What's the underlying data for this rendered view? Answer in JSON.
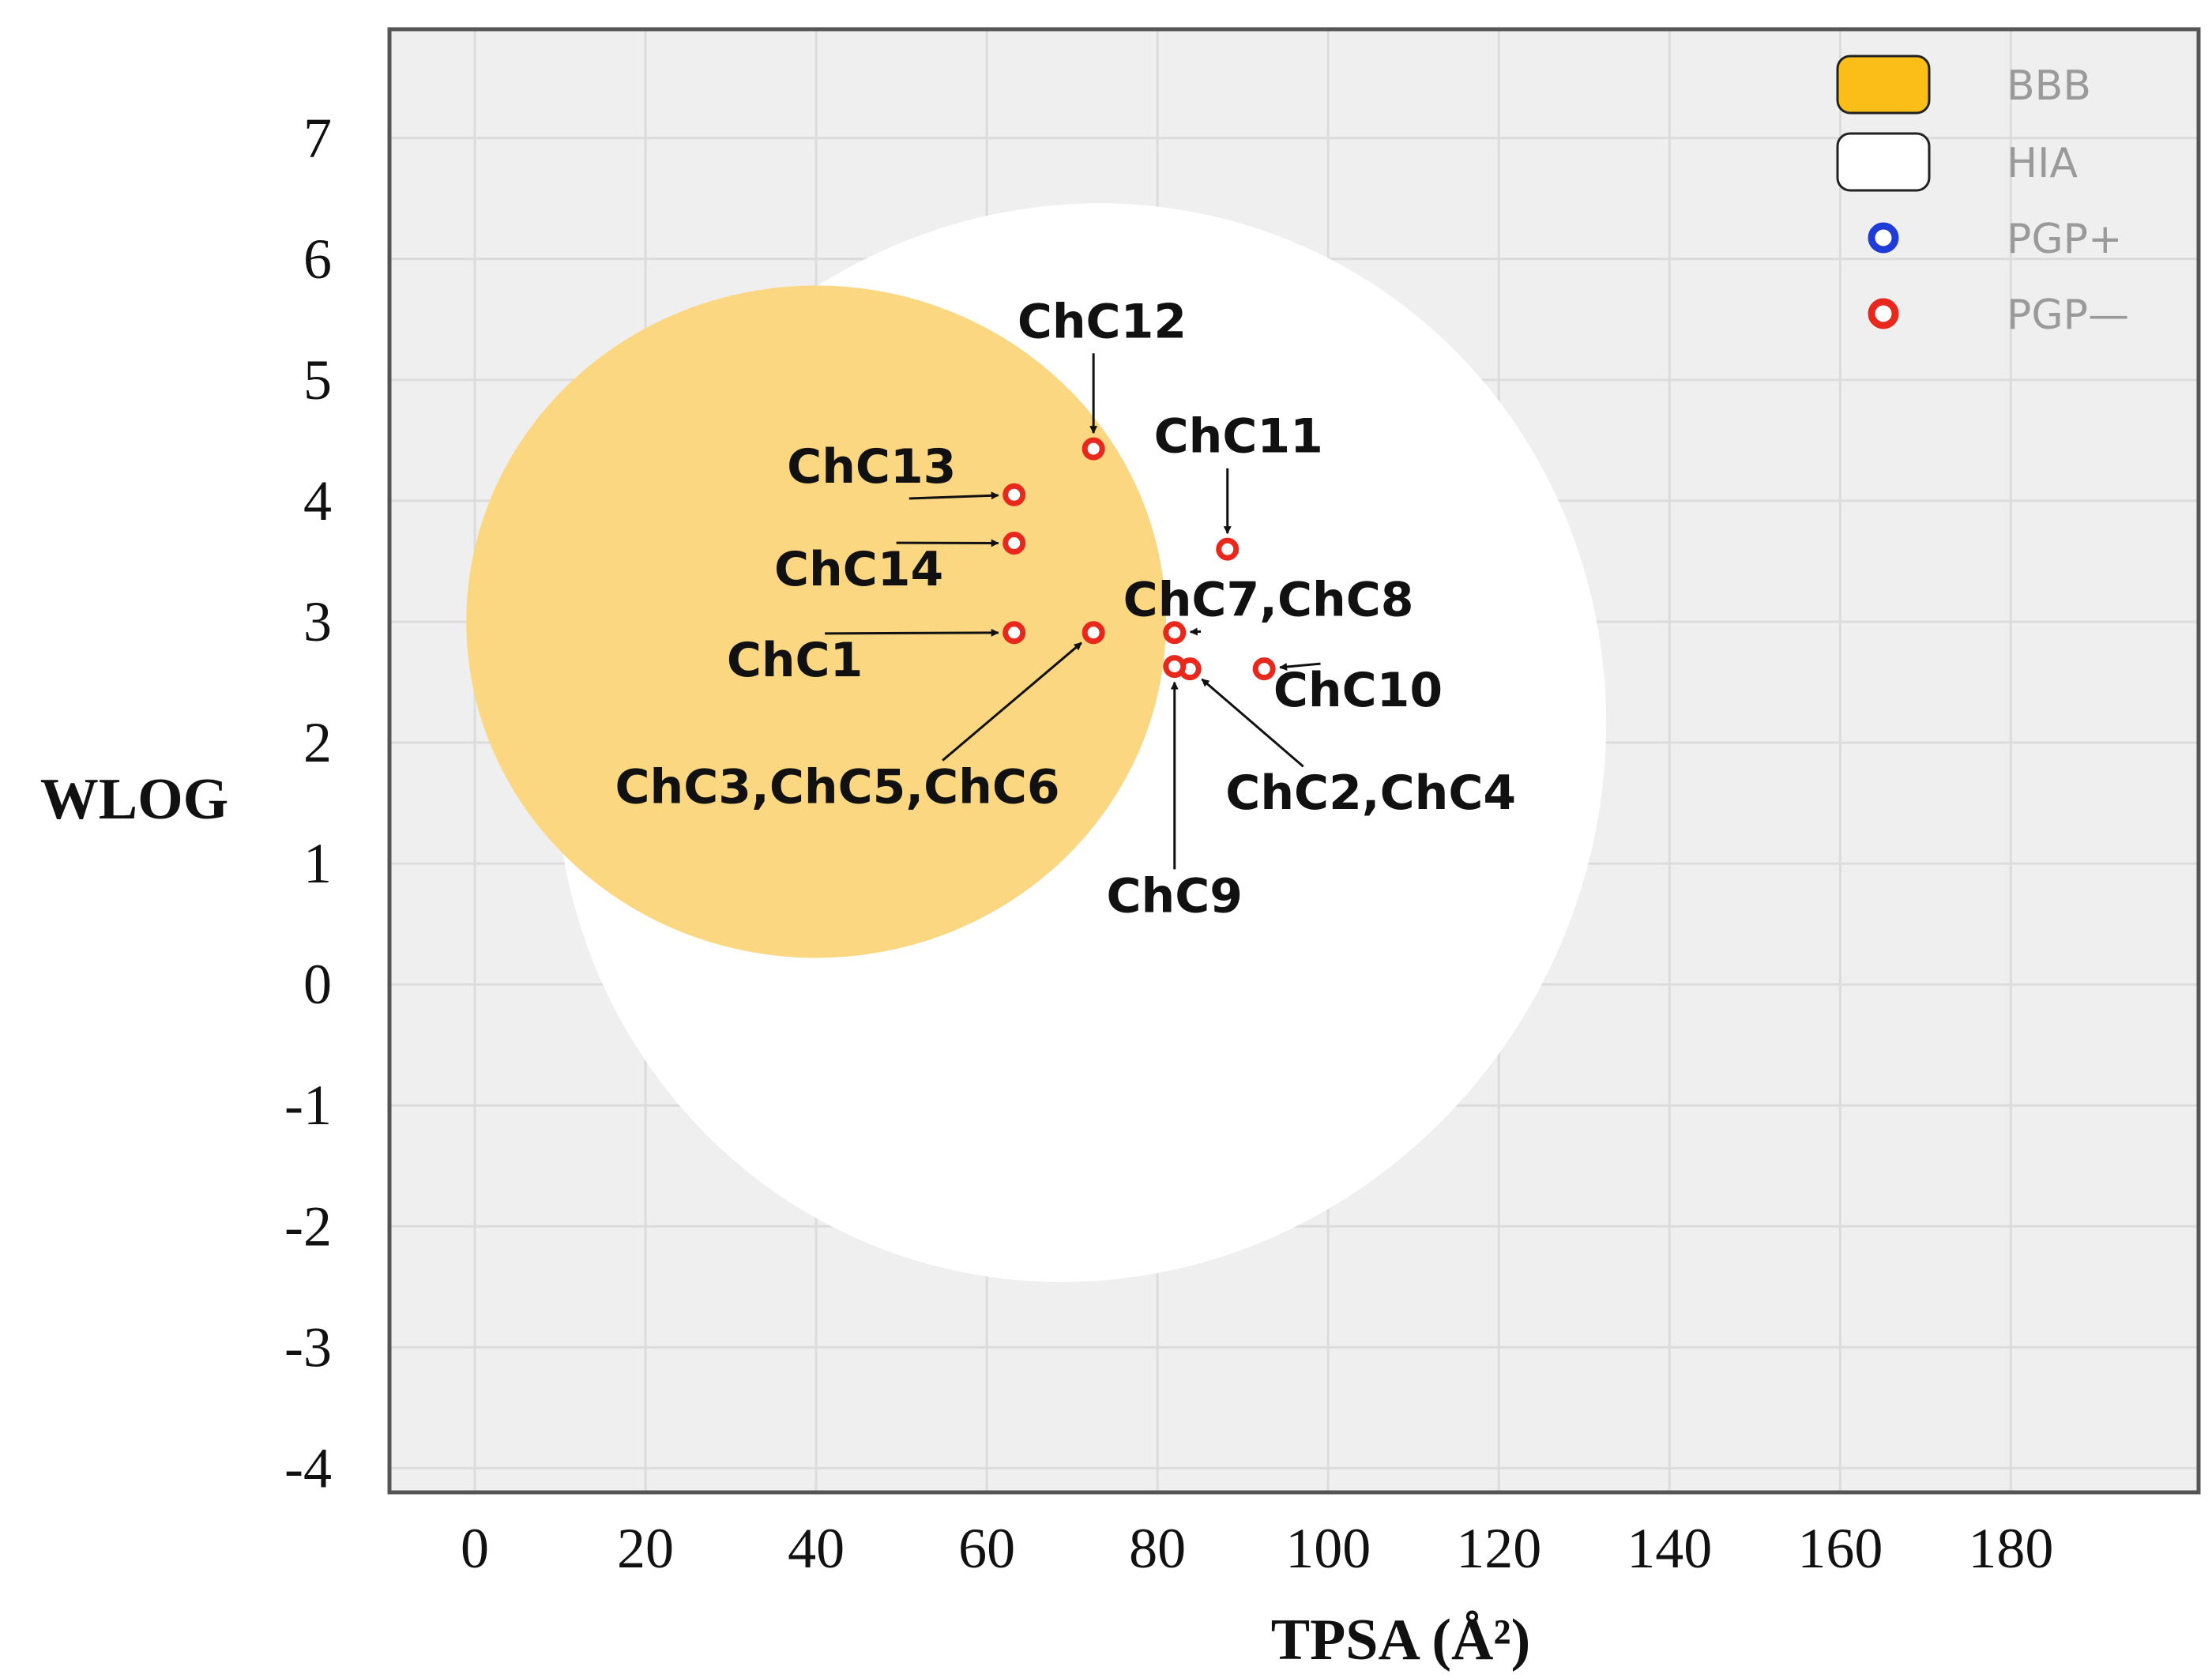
{
  "chart_data": {
    "type": "scatter",
    "title": "",
    "xlabel": "TPSA (Å²)",
    "ylabel": "WLOG",
    "xlim": [
      -10,
      202
    ],
    "ylim": [
      -4.2,
      7.9
    ],
    "x_ticks": [
      0,
      20,
      40,
      60,
      80,
      100,
      120,
      140,
      160,
      180
    ],
    "y_ticks": [
      7,
      6,
      5,
      4,
      3,
      2,
      1,
      0,
      -1,
      -2,
      -3,
      -4
    ],
    "grid": true,
    "regions": [
      {
        "name": "HIA",
        "center": [
          71.0,
          2.0
        ],
        "radii": [
          61.0,
          4.5
        ],
        "rotation_deg": 27,
        "color": "#ffffff"
      },
      {
        "name": "BBB",
        "center": [
          40.0,
          3.0
        ],
        "radii": [
          41.0,
          2.78
        ],
        "rotation_deg": 0,
        "color": "#fbd782"
      }
    ],
    "series": [
      {
        "name": "PGP—",
        "color": "#e8281c",
        "points": [
          {
            "label": "ChC1",
            "x": 63.2,
            "y": 2.91
          },
          {
            "label": "ChC3,ChC5,ChC6",
            "x": 72.5,
            "y": 2.91
          },
          {
            "label": "ChC2,ChC4",
            "x": 83.8,
            "y": 2.61
          },
          {
            "label": "ChC7,ChC8",
            "x": 82.0,
            "y": 2.91
          },
          {
            "label": "ChC9",
            "x": 82.0,
            "y": 2.63
          },
          {
            "label": "ChC10",
            "x": 92.5,
            "y": 2.61
          },
          {
            "label": "ChC11",
            "x": 88.2,
            "y": 3.6
          },
          {
            "label": "ChC12",
            "x": 72.5,
            "y": 4.43
          },
          {
            "label": "ChC13",
            "x": 63.2,
            "y": 4.05
          },
          {
            "label": "ChC14",
            "x": 63.2,
            "y": 3.65
          }
        ]
      }
    ],
    "annotations": [
      {
        "text": "ChC12",
        "x": 73.5,
        "y": 5.35
      },
      {
        "text": "ChC11",
        "x": 89.5,
        "y": 4.4
      },
      {
        "text": "ChC13",
        "x": 46.5,
        "y": 4.15
      },
      {
        "text": "ChC14",
        "x": 45.0,
        "y": 3.3
      },
      {
        "text": "ChC7,ChC8",
        "x": 93.0,
        "y": 3.05
      },
      {
        "text": "ChC1",
        "x": 37.5,
        "y": 2.55
      },
      {
        "text": "ChC10",
        "x": 103.5,
        "y": 2.3
      },
      {
        "text": "ChC3,ChC5,ChC6",
        "x": 42.5,
        "y": 1.5
      },
      {
        "text": "ChC2,ChC4",
        "x": 105.0,
        "y": 1.45
      },
      {
        "text": "ChC9",
        "x": 82.0,
        "y": 0.6
      }
    ],
    "legend": {
      "position": "top-right",
      "entries": [
        {
          "label": "BBB",
          "symbol": "box",
          "color": "#fbbd18"
        },
        {
          "label": "HIA",
          "symbol": "box",
          "color": "#ffffff"
        },
        {
          "label": "PGP+",
          "symbol": "ring",
          "color": "#1f3bd8"
        },
        {
          "label": "PGP—",
          "symbol": "ring",
          "color": "#e8281c"
        }
      ]
    }
  }
}
